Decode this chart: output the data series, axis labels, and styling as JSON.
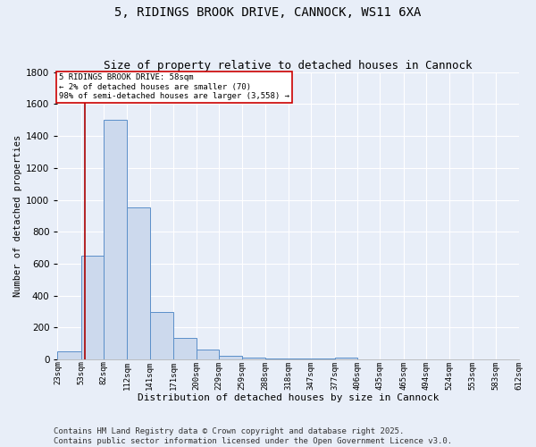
{
  "title_line1": "5, RIDINGS BROOK DRIVE, CANNOCK, WS11 6XA",
  "title_line2": "Size of property relative to detached houses in Cannock",
  "xlabel": "Distribution of detached houses by size in Cannock",
  "ylabel": "Number of detached properties",
  "bin_edges": [
    23,
    53,
    82,
    112,
    141,
    171,
    200,
    229,
    259,
    288,
    318,
    347,
    377,
    406,
    435,
    465,
    494,
    524,
    553,
    583,
    612
  ],
  "bin_counts": [
    50,
    650,
    1500,
    950,
    295,
    135,
    65,
    25,
    15,
    5,
    5,
    5,
    15,
    0,
    0,
    0,
    0,
    0,
    0,
    0
  ],
  "bar_color": "#ccd9ed",
  "bar_edge_color": "#5b8fc9",
  "property_size": 58,
  "vline_color": "#aa0000",
  "annotation_text": "5 RIDINGS BROOK DRIVE: 58sqm\n← 2% of detached houses are smaller (70)\n98% of semi-detached houses are larger (3,558) →",
  "annotation_box_color": "#ffffff",
  "annotation_box_edge_color": "#cc0000",
  "ylim": [
    0,
    1800
  ],
  "yticks": [
    0,
    200,
    400,
    600,
    800,
    1000,
    1200,
    1400,
    1600,
    1800
  ],
  "tick_labels": [
    "23sqm",
    "53sqm",
    "82sqm",
    "112sqm",
    "141sqm",
    "171sqm",
    "200sqm",
    "229sqm",
    "259sqm",
    "288sqm",
    "318sqm",
    "347sqm",
    "377sqm",
    "406sqm",
    "435sqm",
    "465sqm",
    "494sqm",
    "524sqm",
    "553sqm",
    "583sqm",
    "612sqm"
  ],
  "background_color": "#e8eef8",
  "grid_color": "#ffffff",
  "footer_text": "Contains HM Land Registry data © Crown copyright and database right 2025.\nContains public sector information licensed under the Open Government Licence v3.0.",
  "title_fontsize": 10,
  "subtitle_fontsize": 9,
  "annotation_fontsize": 6.5,
  "footer_fontsize": 6.5,
  "ylabel_fontsize": 7.5,
  "xlabel_fontsize": 8,
  "ytick_fontsize": 7.5,
  "xtick_fontsize": 6.5
}
